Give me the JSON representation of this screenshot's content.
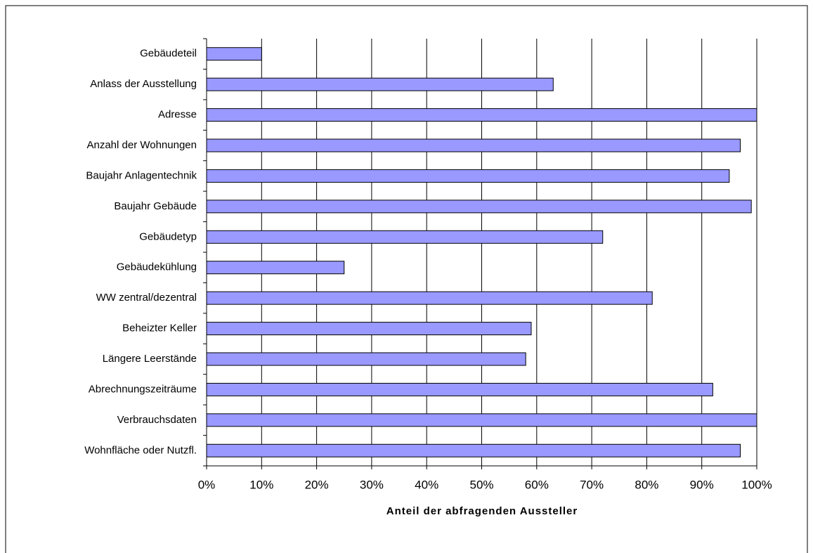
{
  "chart_data": {
    "type": "barh",
    "title": "Anteil der abfragenden Aussteller",
    "categories": [
      "Gebäudeteil",
      "Anlass der Ausstellung",
      "Adresse",
      "Anzahl der Wohnungen",
      "Baujahr Anlagentechnik",
      "Baujahr Gebäude",
      "Gebäudetyp",
      "Gebäudekühlung",
      "WW  zentral/dezentral",
      "Beheizter Keller",
      "Längere Leerstände",
      "Abrechnungszeiträume",
      "Verbrauchsdaten",
      "Wohnfläche oder Nutzfl."
    ],
    "values": [
      10,
      63,
      100,
      97,
      95,
      99,
      72,
      25,
      81,
      59,
      58,
      92,
      100,
      97
    ],
    "color": "#9999ff",
    "xlim": [
      0,
      100
    ],
    "xticks": [
      {
        "value": 0,
        "label": "0%"
      },
      {
        "value": 10,
        "label": "10%"
      },
      {
        "value": 20,
        "label": "20%"
      },
      {
        "value": 30,
        "label": "30%"
      },
      {
        "value": 40,
        "label": "40%"
      },
      {
        "value": 50,
        "label": "50%"
      },
      {
        "value": 60,
        "label": "60%"
      },
      {
        "value": 70,
        "label": "70%"
      },
      {
        "value": 80,
        "label": "80%"
      },
      {
        "value": 90,
        "label": "90%"
      },
      {
        "value": 100,
        "label": "100%"
      }
    ],
    "grid": true
  }
}
